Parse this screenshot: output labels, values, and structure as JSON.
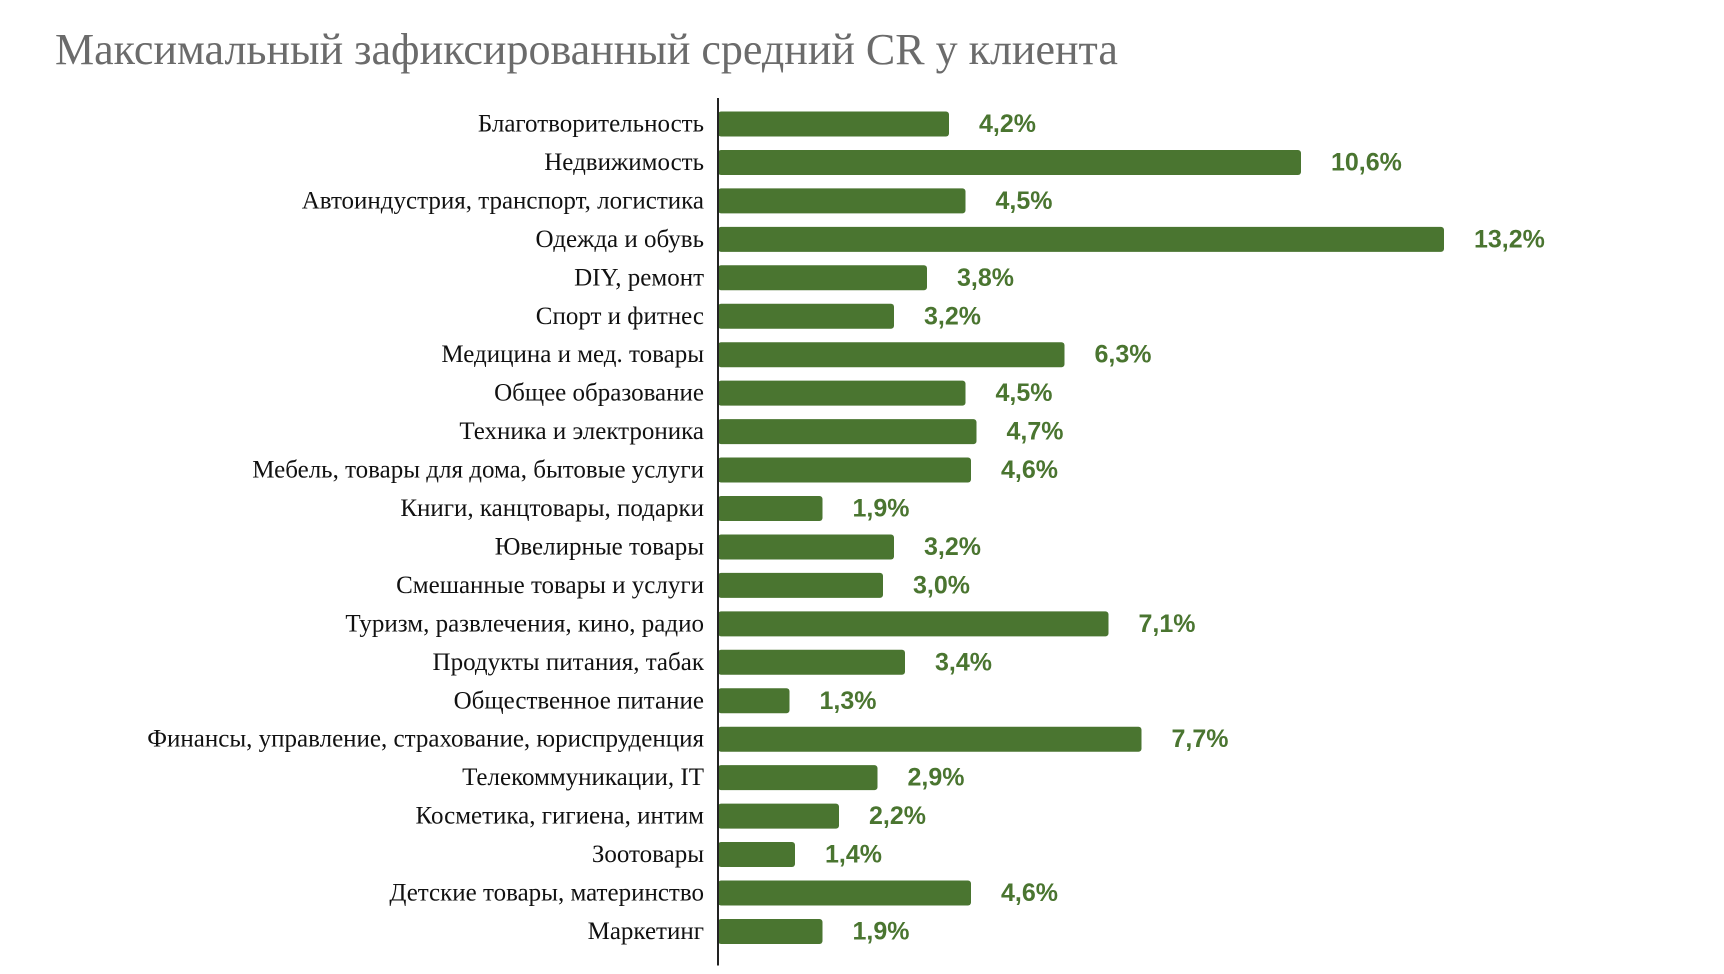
{
  "chart_data": {
    "type": "bar",
    "orientation": "horizontal",
    "title": "Максимальный зафиксированный средний CR у клиента",
    "xlabel": "",
    "ylabel": "",
    "grid": false,
    "legend": "none",
    "bar_color": "#4a7530",
    "label_color": "#4a7530",
    "xlim": [
      0,
      13.2
    ],
    "categories": [
      "Благотворительность",
      "Недвижимость",
      "Автоиндустрия, транспорт, логистика",
      "Одежда и обувь",
      "DIY, ремонт",
      "Спорт и фитнес",
      "Медицина и мед. товары",
      "Общее образование",
      "Техника и электроника",
      "Мебель, товары для дома, бытовые услуги",
      "Книги, канцтовары, подарки",
      "Ювелирные товары",
      "Смешанные товары и услуги",
      "Туризм, развлечения, кино, радио",
      "Продукты питания, табак",
      "Общественное питание",
      "Финансы, управление, страхование, юриспруденция",
      "Телекоммуникации, IT",
      "Косметика, гигиена, интим",
      "Зоотовары",
      "Детские товары, материнство",
      "Маркетинг"
    ],
    "values": [
      4.2,
      10.6,
      4.5,
      13.2,
      3.8,
      3.2,
      6.3,
      4.5,
      4.7,
      4.6,
      1.9,
      3.2,
      3.0,
      7.1,
      3.4,
      1.3,
      7.7,
      2.9,
      2.2,
      1.4,
      4.6,
      1.9
    ],
    "value_labels": [
      "4,2%",
      "10,6%",
      "4,5%",
      "13,2%",
      "3,8%",
      "3,2%",
      "6,3%",
      "4,5%",
      "4,7%",
      "4,6%",
      "1,9%",
      "3,2%",
      "3,0%",
      "7,1%",
      "3,4%",
      "1,3%",
      "7,7%",
      "2,9%",
      "2,2%",
      "1,4%",
      "4,6%",
      "1,9%"
    ]
  }
}
